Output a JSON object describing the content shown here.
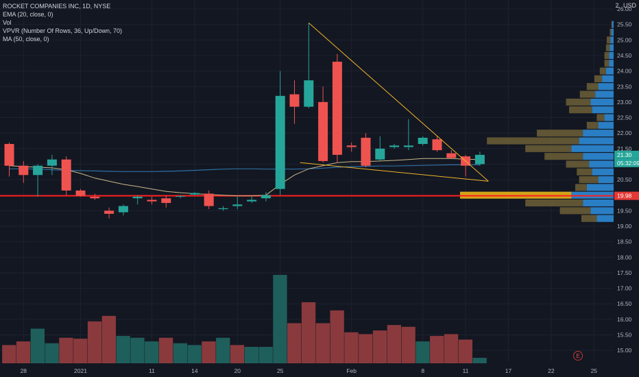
{
  "header": {
    "symbol_line": "ROCKET COMPANIES INC, 1D, NYSE",
    "indicators": [
      "EMA (20, close, 0)",
      "Vol",
      "VPVR (Number Of Rows, 36, Up/Down, 70)",
      "MA (50, close, 0)"
    ],
    "currency_count": "2",
    "currency": "USD"
  },
  "colors": {
    "background": "#131722",
    "up": "#26a69a",
    "down": "#ef5350",
    "vol_up": "#1f5f5b",
    "vol_down": "#8a3a3d",
    "ema": "#c9b98a",
    "ma": "#2f6fa3",
    "trendline": "#f0b429",
    "support": "#ff1e1e",
    "vp_up": "#2a7ec4",
    "vp_down": "#7a6a3a",
    "vp_poc": "#d1a31a"
  },
  "chart_data": {
    "type": "candlestick",
    "ylim": [
      14.65,
      26.2
    ],
    "y_ticks": [
      "15.00",
      "15.50",
      "16.00",
      "16.50",
      "17.00",
      "17.50",
      "18.00",
      "18.50",
      "19.00",
      "19.50",
      "20.00",
      "20.50",
      "21.00",
      "21.50",
      "22.00",
      "22.50",
      "23.00",
      "23.50",
      "24.00",
      "24.50",
      "25.00",
      "25.50",
      "26.00"
    ],
    "x_ticks": [
      {
        "label": "28",
        "index": 1
      },
      {
        "label": "2021",
        "index": 5
      },
      {
        "label": "11",
        "index": 10
      },
      {
        "label": "14",
        "index": 13
      },
      {
        "label": "20",
        "index": 16
      },
      {
        "label": "25",
        "index": 19
      },
      {
        "label": "Feb",
        "index": 24
      },
      {
        "label": "8",
        "index": 29
      },
      {
        "label": "11",
        "index": 32
      },
      {
        "label": "17",
        "index": 35
      },
      {
        "label": "22",
        "index": 38
      },
      {
        "label": "25",
        "index": 41
      }
    ],
    "candles": [
      {
        "o": 21.65,
        "h": 21.7,
        "l": 20.6,
        "c": 20.95
      },
      {
        "o": 20.95,
        "h": 21.1,
        "l": 20.4,
        "c": 20.65
      },
      {
        "o": 20.65,
        "h": 21.0,
        "l": 19.95,
        "c": 20.95
      },
      {
        "o": 20.95,
        "h": 21.3,
        "l": 20.65,
        "c": 21.15
      },
      {
        "o": 21.15,
        "h": 21.25,
        "l": 20.0,
        "c": 20.15
      },
      {
        "o": 20.15,
        "h": 20.2,
        "l": 19.95,
        "c": 19.98
      },
      {
        "o": 19.95,
        "h": 20.05,
        "l": 19.85,
        "c": 19.9
      },
      {
        "o": 19.5,
        "h": 19.6,
        "l": 19.25,
        "c": 19.4
      },
      {
        "o": 19.45,
        "h": 19.7,
        "l": 19.35,
        "c": 19.65
      },
      {
        "o": 19.9,
        "h": 20.0,
        "l": 19.7,
        "c": 19.95
      },
      {
        "o": 19.85,
        "h": 19.95,
        "l": 19.7,
        "c": 19.8
      },
      {
        "o": 19.9,
        "h": 20.0,
        "l": 19.6,
        "c": 19.75
      },
      {
        "o": 19.95,
        "h": 20.0,
        "l": 19.9,
        "c": 19.97
      },
      {
        "o": 20.02,
        "h": 20.1,
        "l": 20.0,
        "c": 20.07
      },
      {
        "o": 20.05,
        "h": 20.15,
        "l": 19.55,
        "c": 19.65
      },
      {
        "o": 19.55,
        "h": 19.65,
        "l": 19.5,
        "c": 19.58
      },
      {
        "o": 19.65,
        "h": 19.95,
        "l": 19.55,
        "c": 19.7
      },
      {
        "o": 19.8,
        "h": 19.95,
        "l": 19.75,
        "c": 19.85
      },
      {
        "o": 19.9,
        "h": 20.1,
        "l": 19.8,
        "c": 20.0
      },
      {
        "o": 20.2,
        "h": 24.0,
        "l": 20.0,
        "c": 23.2
      },
      {
        "o": 23.25,
        "h": 23.7,
        "l": 22.3,
        "c": 22.85
      },
      {
        "o": 22.85,
        "h": 25.55,
        "l": 22.8,
        "c": 23.7
      },
      {
        "o": 23.0,
        "h": 23.5,
        "l": 21.05,
        "c": 21.1
      },
      {
        "o": 24.3,
        "h": 24.55,
        "l": 21.05,
        "c": 21.3
      },
      {
        "o": 21.6,
        "h": 21.7,
        "l": 21.4,
        "c": 21.55
      },
      {
        "o": 21.85,
        "h": 22.0,
        "l": 20.9,
        "c": 20.95
      },
      {
        "o": 21.15,
        "h": 21.9,
        "l": 21.1,
        "c": 21.5
      },
      {
        "o": 21.55,
        "h": 21.65,
        "l": 21.5,
        "c": 21.6
      },
      {
        "o": 21.55,
        "h": 22.45,
        "l": 21.45,
        "c": 21.6
      },
      {
        "o": 21.65,
        "h": 21.9,
        "l": 21.6,
        "c": 21.85
      },
      {
        "o": 21.8,
        "h": 21.9,
        "l": 21.4,
        "c": 21.45
      },
      {
        "o": 21.35,
        "h": 21.45,
        "l": 21.2,
        "c": 21.2
      },
      {
        "o": 21.25,
        "h": 21.3,
        "l": 20.6,
        "c": 20.95
      },
      {
        "o": 21.0,
        "h": 21.4,
        "l": 20.95,
        "c": 21.3
      }
    ],
    "volume": {
      "max": 100,
      "values": [
        20,
        24,
        38,
        22,
        28,
        27,
        46,
        52,
        30,
        28,
        24,
        28,
        22,
        20,
        24,
        28,
        20,
        18,
        18,
        97,
        44,
        67,
        44,
        58,
        34,
        32,
        36,
        42,
        40,
        24,
        30,
        32,
        26,
        6
      ],
      "colors": [
        "down",
        "down",
        "up",
        "up",
        "down",
        "down",
        "down",
        "down",
        "up",
        "up",
        "up",
        "down",
        "up",
        "up",
        "down",
        "up",
        "down",
        "up",
        "up",
        "up",
        "down",
        "down",
        "down",
        "down",
        "down",
        "down",
        "down",
        "down",
        "down",
        "up",
        "down",
        "down",
        "down",
        "up"
      ]
    },
    "ema20": [
      20.95,
      20.92,
      20.9,
      20.88,
      20.82,
      20.7,
      20.55,
      20.45,
      20.35,
      20.28,
      20.2,
      20.12,
      20.08,
      20.05,
      20.02,
      20.0,
      19.98,
      19.98,
      20.0,
      20.35,
      20.65,
      20.85,
      20.95,
      21.05,
      21.08,
      21.08,
      21.1,
      21.12,
      21.15,
      21.18,
      21.18,
      21.18,
      21.16,
      21.15
    ],
    "ma50": [
      20.85,
      20.85,
      20.84,
      20.82,
      20.8,
      20.79,
      20.78,
      20.77,
      20.76,
      20.76,
      20.76,
      20.77,
      20.78,
      20.8,
      20.82,
      20.84,
      20.85,
      20.85,
      20.84,
      20.84,
      20.84,
      20.85,
      20.87,
      20.9,
      20.92,
      20.93,
      20.94,
      20.94,
      20.95,
      20.96,
      20.97,
      20.98,
      20.98,
      20.98
    ],
    "trendlines": [
      {
        "from": {
          "index": 21,
          "price": 25.55
        },
        "to": {
          "index": 33.6,
          "price": 20.45
        }
      },
      {
        "from": {
          "index": 20.4,
          "price": 21.05
        },
        "to": {
          "index": 33.6,
          "price": 20.45
        }
      }
    ],
    "support_price": 19.98,
    "volume_profile": [
      {
        "price": 19.25,
        "up": 22,
        "down": 20
      },
      {
        "price": 19.5,
        "up": 30,
        "down": 40
      },
      {
        "price": 19.75,
        "up": 40,
        "down": 75
      },
      {
        "price": 20.0,
        "up": 55,
        "down": 145
      },
      {
        "price": 20.25,
        "up": 35,
        "down": 15
      },
      {
        "price": 20.5,
        "up": 20,
        "down": 25
      },
      {
        "price": 20.75,
        "up": 28,
        "down": 20
      },
      {
        "price": 21.0,
        "up": 32,
        "down": 30
      },
      {
        "price": 21.25,
        "up": 40,
        "down": 50
      },
      {
        "price": 21.5,
        "up": 55,
        "down": 60
      },
      {
        "price": 21.75,
        "up": 45,
        "down": 120
      },
      {
        "price": 22.0,
        "up": 40,
        "down": 60
      },
      {
        "price": 22.25,
        "up": 20,
        "down": 15
      },
      {
        "price": 22.5,
        "up": 12,
        "down": 10
      },
      {
        "price": 22.75,
        "up": 28,
        "down": 30
      },
      {
        "price": 23.0,
        "up": 30,
        "down": 32
      },
      {
        "price": 23.25,
        "up": 24,
        "down": 20
      },
      {
        "price": 23.5,
        "up": 20,
        "down": 15
      },
      {
        "price": 23.75,
        "up": 15,
        "down": 10
      },
      {
        "price": 24.0,
        "up": 10,
        "down": 8
      },
      {
        "price": 24.25,
        "up": 6,
        "down": 6
      },
      {
        "price": 24.5,
        "up": 6,
        "down": 6
      },
      {
        "price": 24.75,
        "up": 5,
        "down": 5
      },
      {
        "price": 25.0,
        "up": 4,
        "down": 5
      },
      {
        "price": 25.25,
        "up": 3,
        "down": 2
      },
      {
        "price": 25.5,
        "up": 2,
        "down": 1
      }
    ],
    "price_labels": {
      "last": "21.30",
      "countdown": "05:32:09",
      "support": "19.98"
    },
    "footer_badge": "E"
  }
}
